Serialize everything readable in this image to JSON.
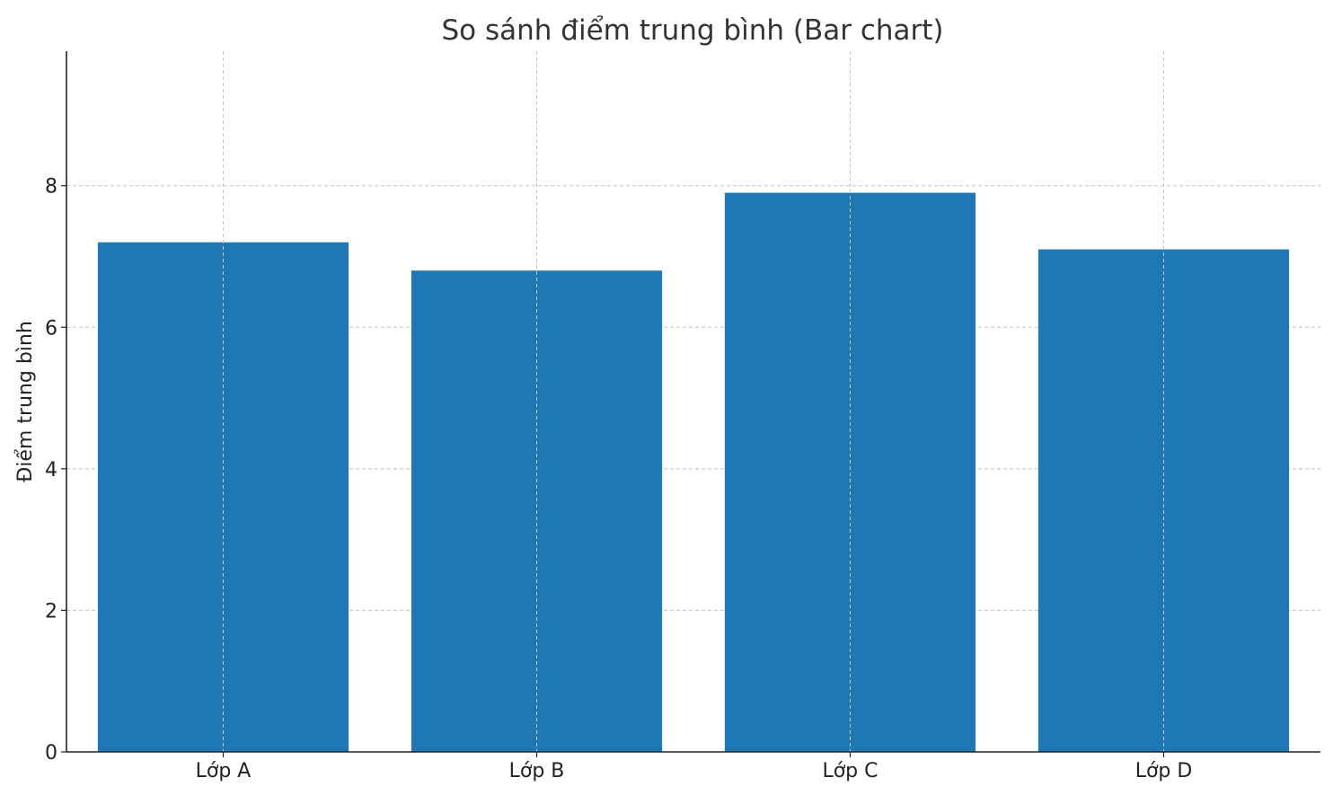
{
  "chart_data": {
    "type": "bar",
    "title": "So sánh điểm trung bình (Bar chart)",
    "xlabel": "",
    "ylabel": "Điểm trung bình",
    "categories": [
      "Lớp A",
      "Lớp B",
      "Lớp C",
      "Lớp D"
    ],
    "values": [
      7.2,
      6.8,
      7.9,
      7.1
    ],
    "ylim": [
      0,
      9.9
    ],
    "yticks": [
      "0",
      "2",
      "4",
      "6",
      "8"
    ],
    "grid": true,
    "bar_color": "#1f77b4"
  }
}
